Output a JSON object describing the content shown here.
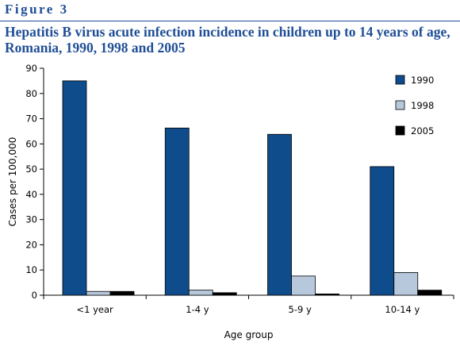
{
  "header": {
    "figure_label": "Figure 3",
    "title": "Hepatitis B virus acute infection incidence in children up to 14 years of age, Romania, 1990, 1998 and 2005"
  },
  "chart_data": {
    "type": "bar",
    "title": "Hepatitis B virus acute infection incidence in children up to 14 years of age, Romania, 1990, 1998 and 2005",
    "xlabel": "Age group",
    "ylabel": "Cases per 100,000",
    "ylim": [
      0,
      90
    ],
    "yticks": [
      0,
      10,
      20,
      30,
      40,
      50,
      60,
      70,
      80,
      90
    ],
    "categories": [
      "<1 year",
      "1-4 y",
      "5-9 y",
      "10-14 y"
    ],
    "series": [
      {
        "name": "1990",
        "color": "#0f4c8c",
        "values": [
          85,
          66.3,
          63.8,
          51
        ]
      },
      {
        "name": "1998",
        "color": "#b7c8dc",
        "values": [
          1.5,
          2,
          7.6,
          9
        ]
      },
      {
        "name": "2005",
        "color": "#000000",
        "values": [
          1.5,
          1,
          0.5,
          2
        ]
      }
    ],
    "legend": "right",
    "grid": false
  }
}
